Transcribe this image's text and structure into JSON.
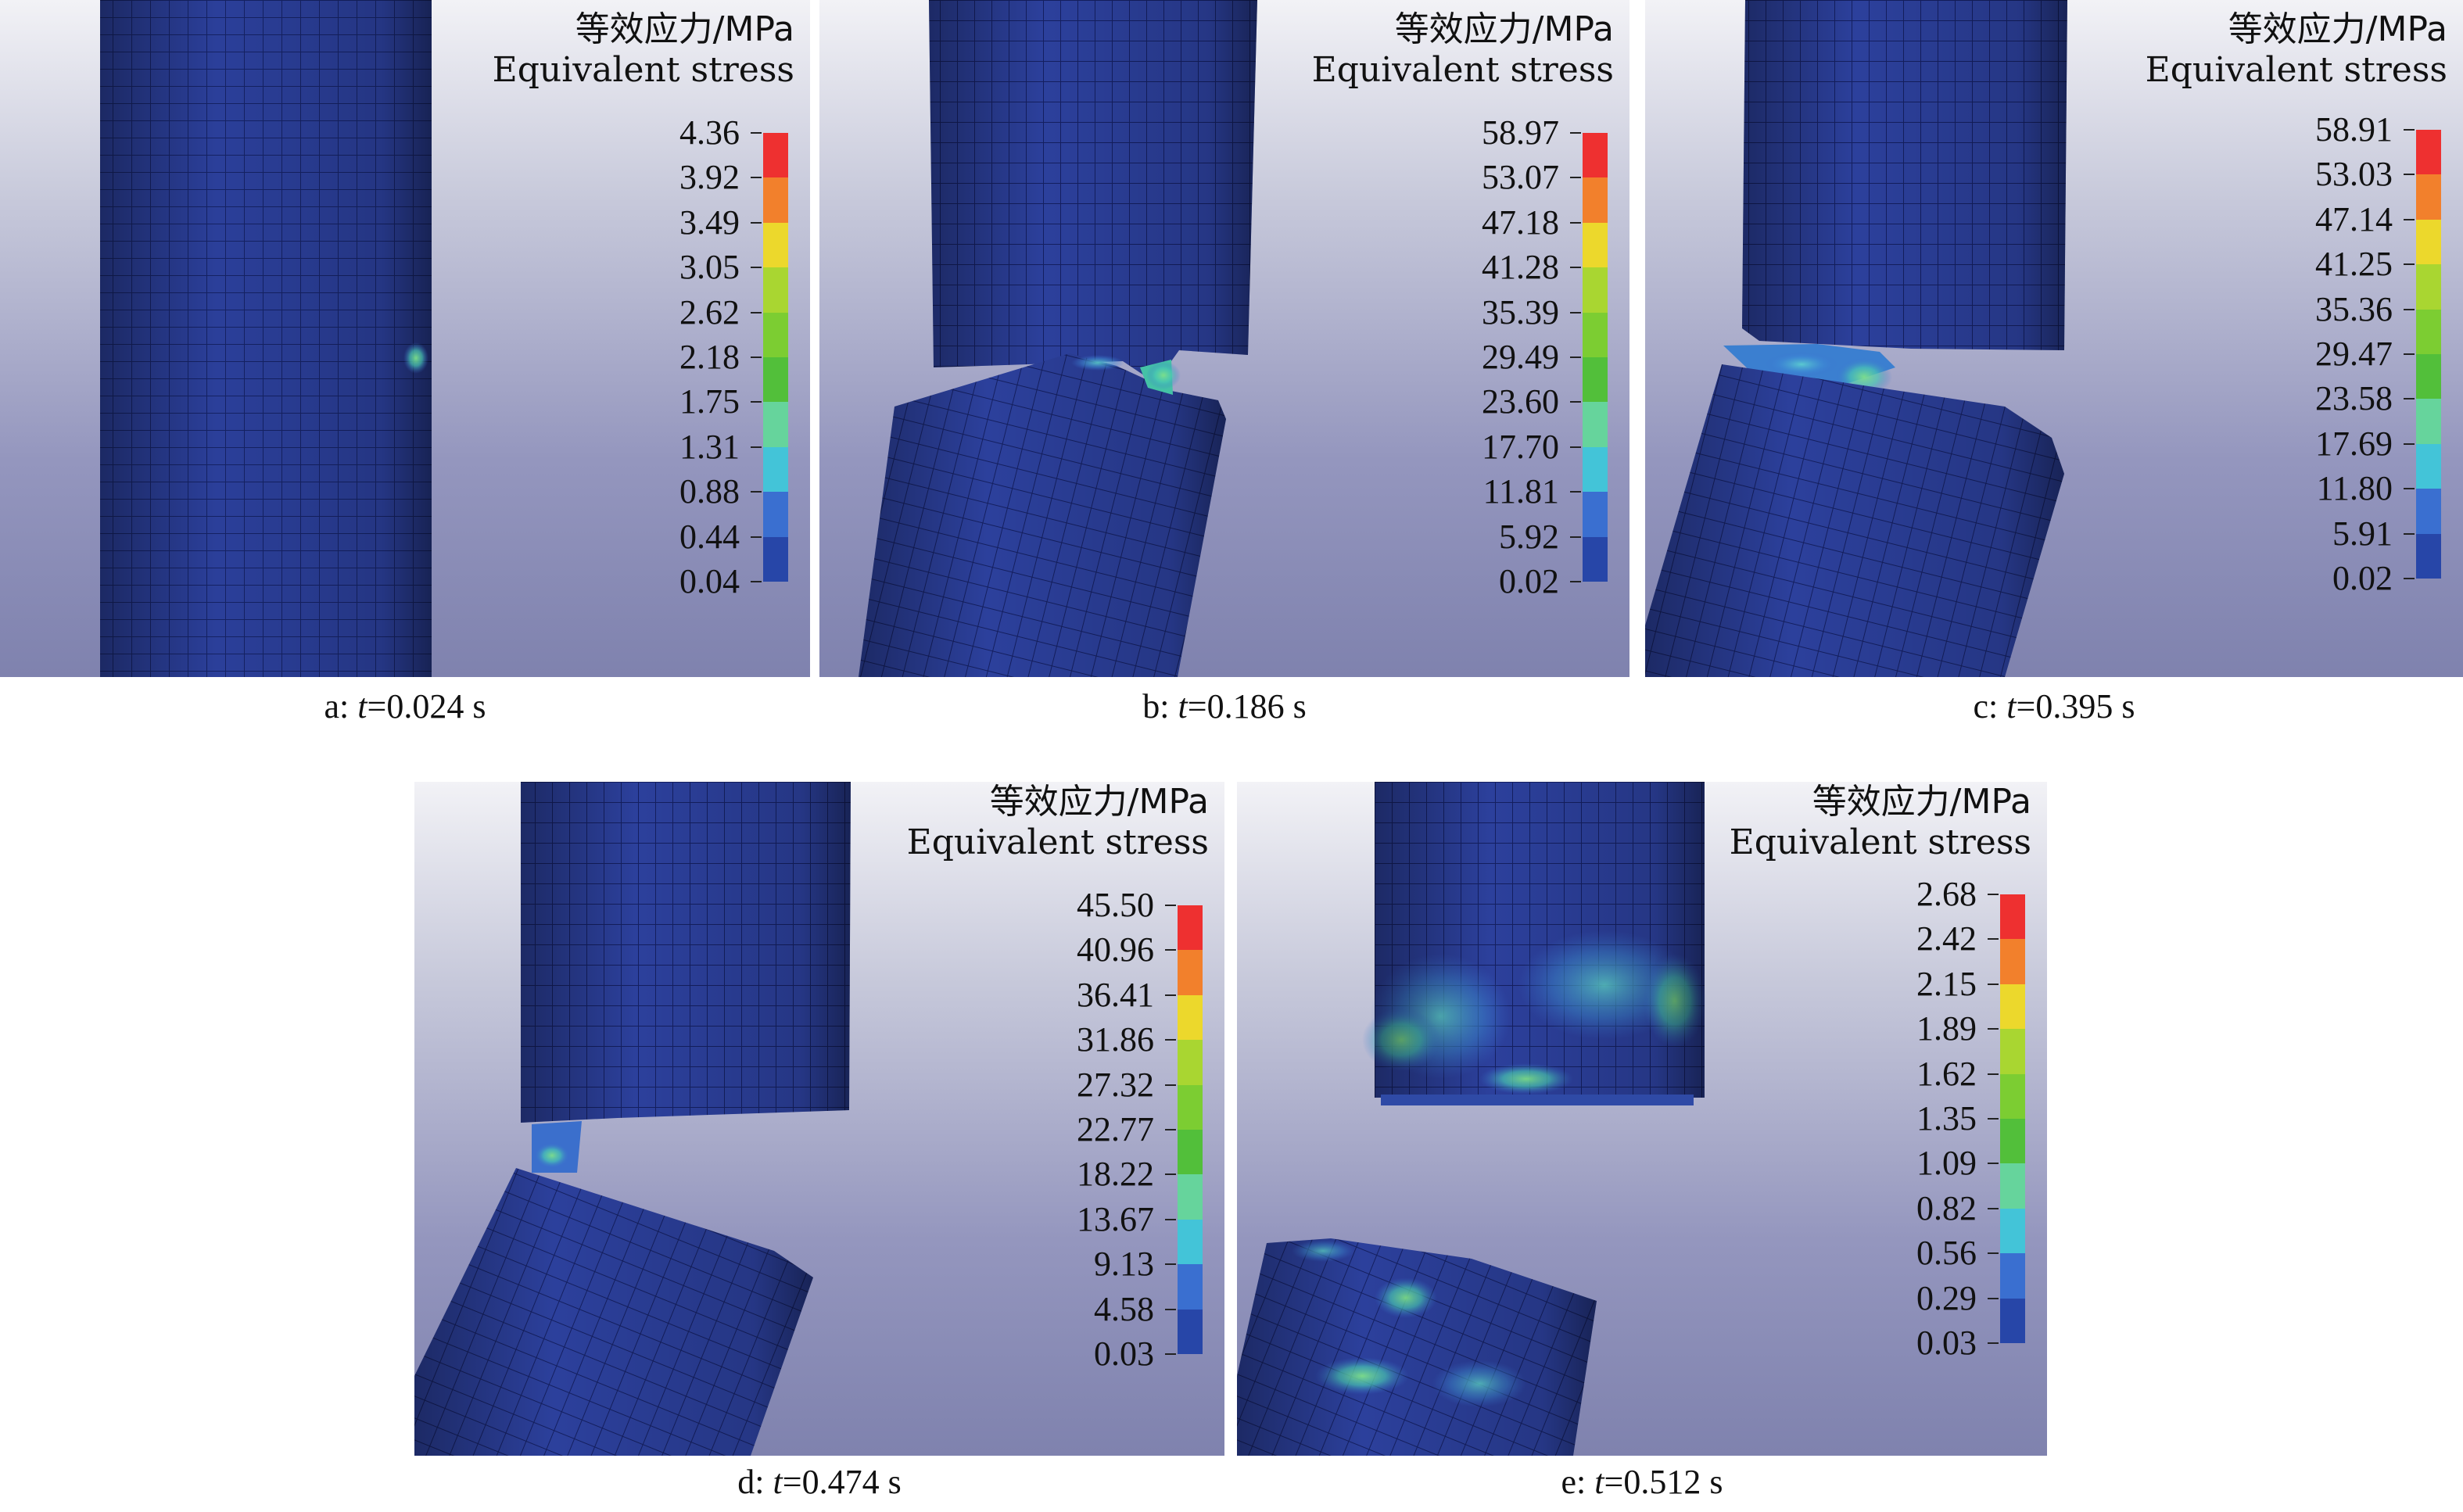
{
  "scale_colors": [
    "#2746a8",
    "#3a6fd0",
    "#43c4d8",
    "#66d49c",
    "#52bf3a",
    "#7ccd32",
    "#a9d631",
    "#ecd82c",
    "#f2802c",
    "#ee3030"
  ],
  "panels": [
    {
      "id": "a",
      "title_cn": "等效应力/MPa",
      "title_en": "Equivalent stress",
      "values": [
        "4.36",
        "3.92",
        "3.49",
        "3.05",
        "2.62",
        "2.18",
        "1.75",
        "1.31",
        "0.88",
        "0.44",
        "0.04"
      ],
      "caption_prefix": "a: ",
      "caption_var": "t",
      "caption_value": "=0.024 s"
    },
    {
      "id": "b",
      "title_cn": "等效应力/MPa",
      "title_en": "Equivalent stress",
      "values": [
        "58.97",
        "53.07",
        "47.18",
        "41.28",
        "35.39",
        "29.49",
        "23.60",
        "17.70",
        "11.81",
        "5.92",
        "0.02"
      ],
      "caption_prefix": "b: ",
      "caption_var": "t",
      "caption_value": "=0.186 s"
    },
    {
      "id": "c",
      "title_cn": "等效应力/MPa",
      "title_en": "Equivalent stress",
      "values": [
        "58.91",
        "53.03",
        "47.14",
        "41.25",
        "35.36",
        "29.47",
        "23.58",
        "17.69",
        "11.80",
        "5.91",
        "0.02"
      ],
      "caption_prefix": "c: ",
      "caption_var": "t",
      "caption_value": "=0.395 s"
    },
    {
      "id": "d",
      "title_cn": "等效应力/MPa",
      "title_en": "Equivalent stress",
      "values": [
        "45.50",
        "40.96",
        "36.41",
        "31.86",
        "27.32",
        "22.77",
        "18.22",
        "13.67",
        "9.13",
        "4.58",
        "0.03"
      ],
      "caption_prefix": "d: ",
      "caption_var": "t",
      "caption_value": "=0.474 s"
    },
    {
      "id": "e",
      "title_cn": "等效应力/MPa",
      "title_en": "Equivalent stress",
      "values": [
        "2.68",
        "2.42",
        "2.15",
        "1.89",
        "1.62",
        "1.35",
        "1.09",
        "0.82",
        "0.56",
        "0.29",
        "0.03"
      ],
      "caption_prefix": "e: ",
      "caption_var": "t",
      "caption_value": "=0.512 s"
    }
  ]
}
